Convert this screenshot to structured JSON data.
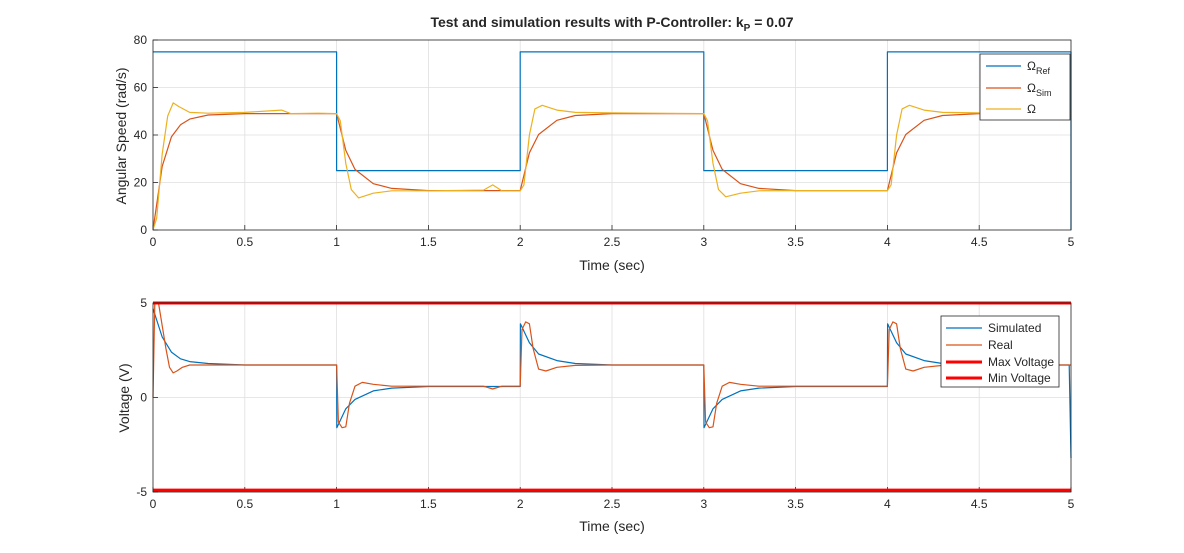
{
  "chart_data": [
    {
      "type": "line",
      "title": "Test and simulation results with P-Controller: k",
      "title_sub": "P",
      "title_tail": " = 0.07",
      "xlabel": "Time (sec)",
      "ylabel": "Angular Speed (rad/s)",
      "xlim": [
        0,
        5
      ],
      "ylim": [
        0,
        80
      ],
      "xticks": [
        "0",
        "0.5",
        "1",
        "1.5",
        "2",
        "2.5",
        "3",
        "3.5",
        "4",
        "4.5",
        "5"
      ],
      "yticks": [
        "0",
        "20",
        "40",
        "60",
        "80"
      ],
      "grid": true,
      "legend_position": "top-right",
      "series": [
        {
          "name": "Ω",
          "name_sub": "Ref",
          "color": "#0072BD",
          "x": [
            0,
            1,
            1,
            2,
            2,
            3,
            3,
            4,
            4,
            5,
            5
          ],
          "y": [
            75,
            75,
            25,
            25,
            75,
            75,
            25,
            25,
            75,
            75,
            0
          ]
        },
        {
          "name": "Ω",
          "name_sub": "Sim",
          "color": "#D95319",
          "x": [
            0,
            0.05,
            0.1,
            0.15,
            0.2,
            0.3,
            0.5,
            1.0,
            1.05,
            1.1,
            1.2,
            1.3,
            1.5,
            2.0,
            2.05,
            2.1,
            2.2,
            2.3,
            2.5,
            3.0,
            3.05,
            3.1,
            3.2,
            3.3,
            3.5,
            4.0,
            4.05,
            4.1,
            4.2,
            4.3,
            4.5,
            5.0
          ],
          "y": [
            0,
            26.8,
            39.2,
            44.3,
            46.7,
            48.4,
            49.0,
            49.0,
            33.5,
            25.5,
            19.5,
            17.5,
            16.6,
            16.6,
            32.5,
            40.2,
            46.2,
            48.2,
            49.0,
            49.0,
            33.5,
            25.5,
            19.5,
            17.5,
            16.6,
            16.6,
            32.5,
            40.2,
            46.2,
            48.2,
            49.0,
            49.0
          ]
        },
        {
          "name": "Ω",
          "name_sub": "",
          "color": "#EDB120",
          "x": [
            0,
            0.02,
            0.05,
            0.08,
            0.11,
            0.14,
            0.2,
            0.3,
            0.5,
            0.7,
            0.75,
            0.9,
            1.0,
            1.02,
            1.05,
            1.08,
            1.12,
            1.2,
            1.3,
            1.5,
            1.8,
            1.85,
            1.9,
            2.0,
            2.02,
            2.05,
            2.08,
            2.12,
            2.2,
            2.3,
            2.5,
            3.0,
            3.02,
            3.05,
            3.08,
            3.12,
            3.2,
            3.3,
            3.5,
            4.0,
            4.02,
            4.05,
            4.08,
            4.12,
            4.2,
            4.3,
            4.5,
            5.0
          ],
          "y": [
            0,
            5,
            32,
            48,
            53.5,
            52,
            49.5,
            49.2,
            49.5,
            50.5,
            49,
            49.2,
            49,
            46,
            28,
            17,
            13.5,
            15.5,
            16.5,
            16.5,
            16.8,
            19,
            16.5,
            16.5,
            19,
            40,
            51,
            52.5,
            50.5,
            49.5,
            49.3,
            49,
            46,
            28,
            17,
            14,
            15.5,
            16.5,
            16.6,
            16.6,
            19,
            40,
            51,
            52.5,
            50.5,
            49.5,
            49.3,
            49
          ]
        }
      ]
    },
    {
      "type": "line",
      "title": "",
      "xlabel": "Time (sec)",
      "ylabel": "Voltage (V)",
      "xlim": [
        0,
        5
      ],
      "ylim": [
        -5,
        5
      ],
      "xticks": [
        "0",
        "0.5",
        "1",
        "1.5",
        "2",
        "2.5",
        "3",
        "3.5",
        "4",
        "4.5",
        "5"
      ],
      "yticks": [
        "-5",
        "0",
        "5"
      ],
      "grid": true,
      "legend_position": "top-right",
      "series": [
        {
          "name": "Simulated",
          "color": "#0072BD",
          "x": [
            0,
            0.05,
            0.1,
            0.15,
            0.2,
            0.3,
            0.5,
            1.0,
            1.001,
            1.05,
            1.1,
            1.2,
            1.3,
            1.5,
            2.0,
            2.001,
            2.05,
            2.1,
            2.2,
            2.3,
            2.5,
            3.0,
            3.001,
            3.05,
            3.1,
            3.2,
            3.3,
            3.5,
            4.0,
            4.001,
            4.05,
            4.1,
            4.2,
            4.3,
            4.5,
            4.99,
            5.0
          ],
          "y": [
            4.7,
            3.2,
            2.4,
            2.05,
            1.9,
            1.8,
            1.72,
            1.72,
            -1.6,
            -0.6,
            -0.1,
            0.35,
            0.5,
            0.58,
            0.58,
            3.9,
            2.9,
            2.3,
            1.95,
            1.8,
            1.72,
            1.72,
            -1.6,
            -0.6,
            -0.1,
            0.35,
            0.5,
            0.58,
            0.58,
            3.9,
            2.9,
            2.3,
            1.95,
            1.8,
            1.72,
            1.72,
            -3.2
          ]
        },
        {
          "name": "Real",
          "color": "#D95319",
          "x": [
            0,
            0.01,
            0.03,
            0.05,
            0.07,
            0.09,
            0.11,
            0.13,
            0.16,
            0.2,
            0.3,
            0.5,
            1.0,
            1.01,
            1.03,
            1.05,
            1.07,
            1.1,
            1.14,
            1.2,
            1.3,
            1.5,
            1.8,
            1.85,
            1.9,
            2.0,
            2.01,
            2.03,
            2.05,
            2.07,
            2.1,
            2.14,
            2.2,
            2.3,
            2.5,
            3.0,
            3.01,
            3.03,
            3.05,
            3.07,
            3.1,
            3.14,
            3.2,
            3.3,
            3.5,
            4.0,
            4.01,
            4.03,
            4.05,
            4.07,
            4.1,
            4.14,
            4.2,
            4.3,
            4.5,
            5.0
          ],
          "y": [
            0,
            5.0,
            5.0,
            3.8,
            2.6,
            1.6,
            1.3,
            1.4,
            1.6,
            1.72,
            1.72,
            1.72,
            1.72,
            -1.3,
            -1.6,
            -1.55,
            -0.3,
            0.6,
            0.8,
            0.7,
            0.6,
            0.6,
            0.6,
            0.45,
            0.6,
            0.6,
            3.6,
            4.0,
            3.9,
            2.6,
            1.5,
            1.4,
            1.6,
            1.7,
            1.72,
            1.72,
            -1.3,
            -1.6,
            -1.55,
            -0.3,
            0.6,
            0.8,
            0.7,
            0.6,
            0.6,
            0.6,
            3.6,
            4.0,
            3.9,
            2.6,
            1.5,
            1.4,
            1.6,
            1.7,
            1.72,
            1.72
          ]
        },
        {
          "name": "Max Voltage",
          "color": "#FF0000",
          "x": [
            0,
            5
          ],
          "y": [
            5,
            5
          ]
        },
        {
          "name": "Min Voltage",
          "color": "#FF0000",
          "x": [
            0,
            5
          ],
          "y": [
            -4.9,
            -4.9
          ]
        }
      ]
    }
  ]
}
